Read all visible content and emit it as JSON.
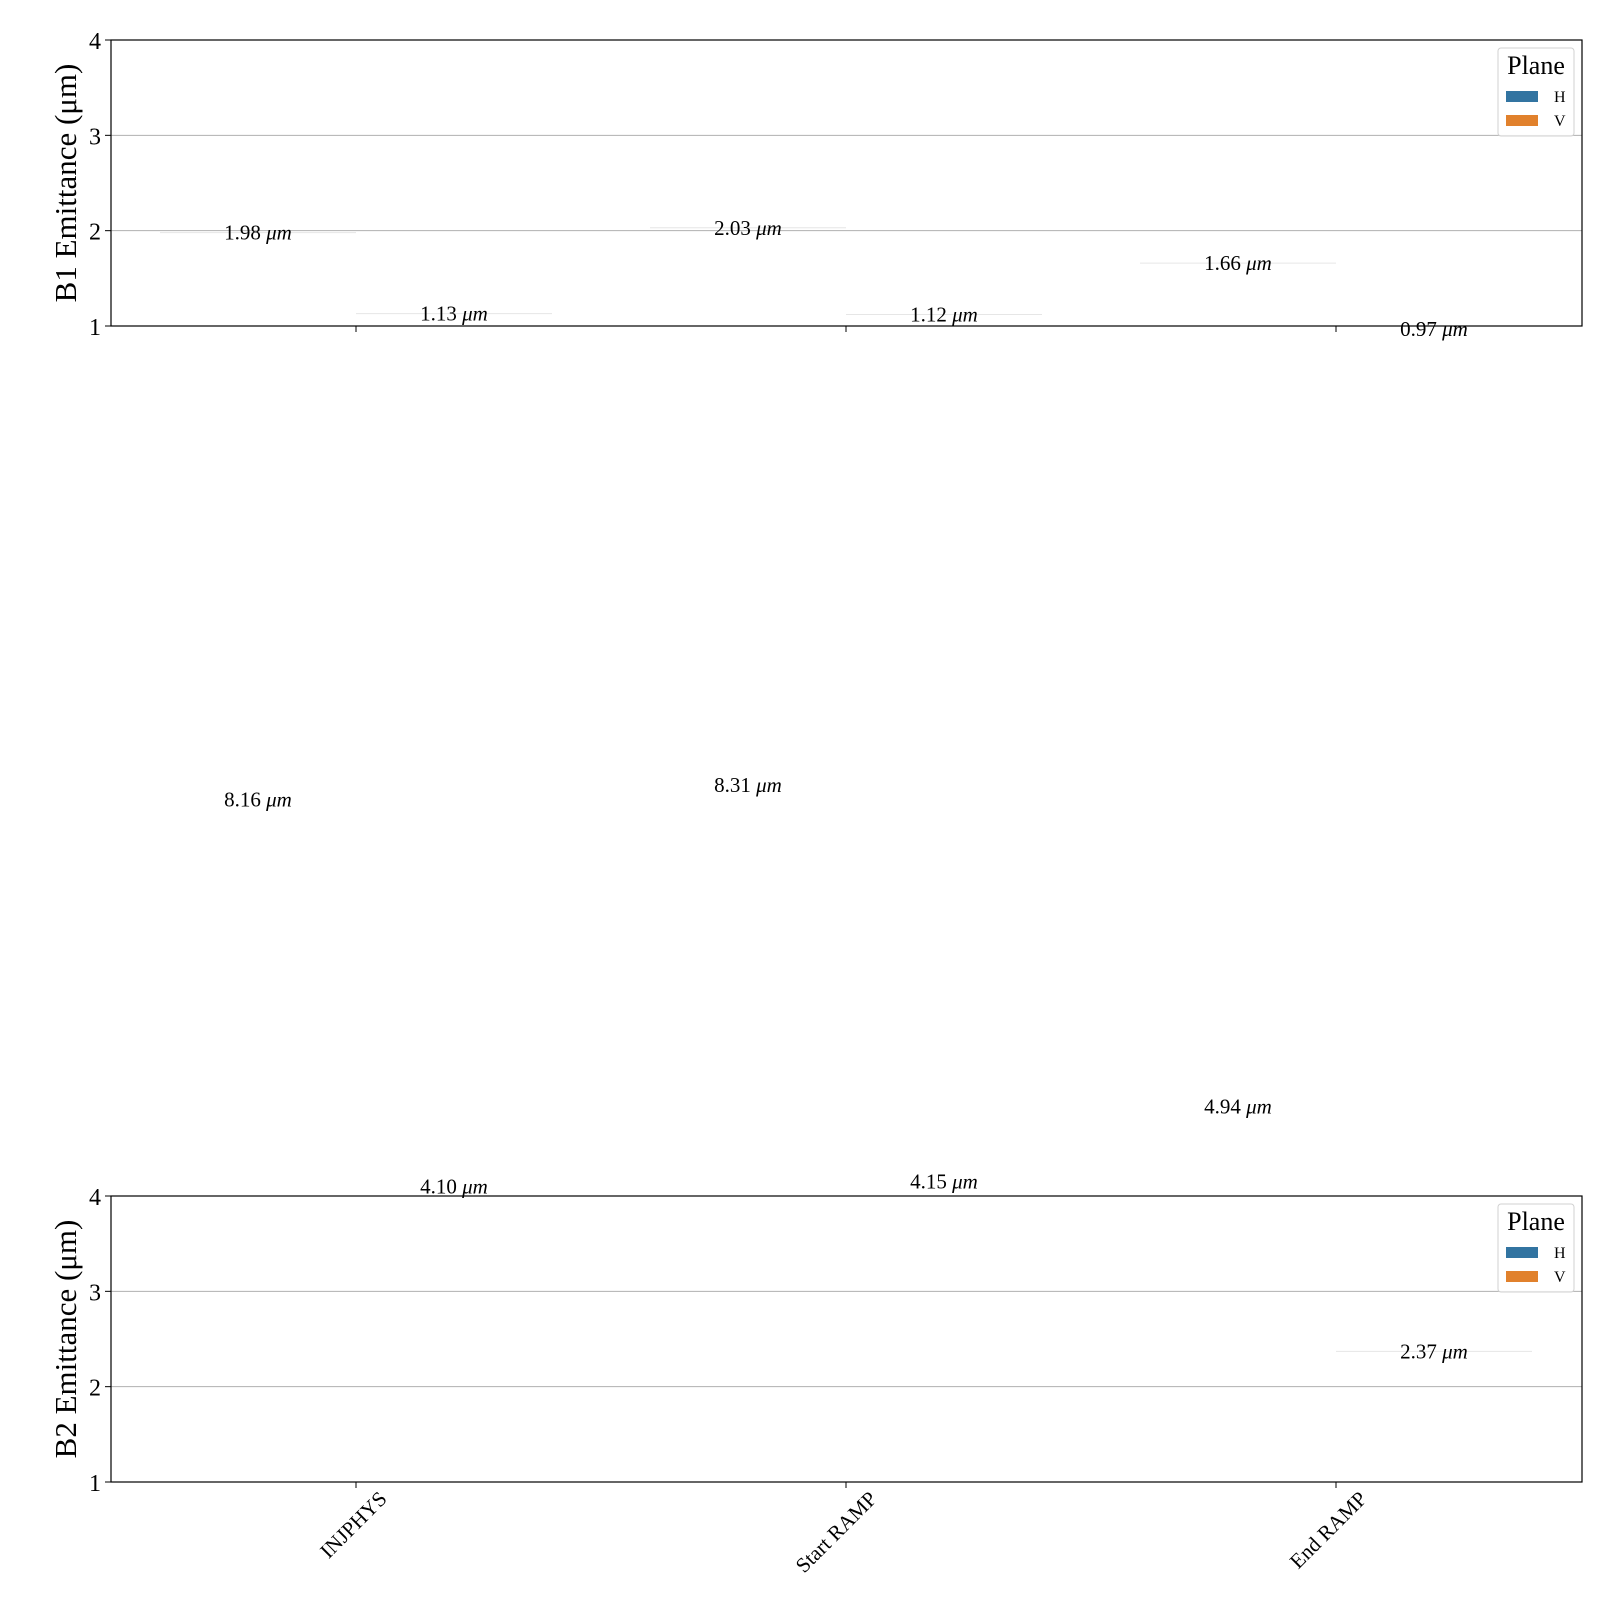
{
  "unit": "μm",
  "chart_data": [
    {
      "type": "bar",
      "ylabel": "B1 Emittance (μm)",
      "ylim": [
        1,
        4
      ],
      "yticks": [
        1,
        2,
        3,
        4
      ],
      "grid": "y",
      "categories": [
        "INJPHYS",
        "Start RAMP",
        "End RAMP"
      ],
      "legend": {
        "title": "Plane",
        "position": "top-right"
      },
      "series": [
        {
          "name": "H",
          "color": "#3274a1",
          "values": [
            1.98,
            2.03,
            1.66
          ],
          "labels": [
            "1.98",
            "2.03",
            "1.66"
          ]
        },
        {
          "name": "V",
          "color": "#e1812c",
          "values": [
            1.13,
            1.12,
            0.97
          ],
          "labels": [
            "1.13",
            "1.12",
            "0.97"
          ]
        }
      ]
    },
    {
      "type": "bar",
      "ylabel": "B2 Emittance (μm)",
      "ylim": [
        1,
        4
      ],
      "yticks": [
        1,
        2,
        3,
        4
      ],
      "grid": "y",
      "categories": [
        "INJPHYS",
        "Start RAMP",
        "End RAMP"
      ],
      "legend": {
        "title": "Plane",
        "position": "top-right"
      },
      "series": [
        {
          "name": "H",
          "color": "#3274a1",
          "values": [
            8.16,
            8.31,
            4.94
          ],
          "labels": [
            "8.16",
            "8.31",
            "4.94"
          ]
        },
        {
          "name": "V",
          "color": "#e1812c",
          "values": [
            4.1,
            4.15,
            2.37
          ],
          "labels": [
            "4.10",
            "4.15",
            "2.37"
          ]
        }
      ]
    }
  ]
}
